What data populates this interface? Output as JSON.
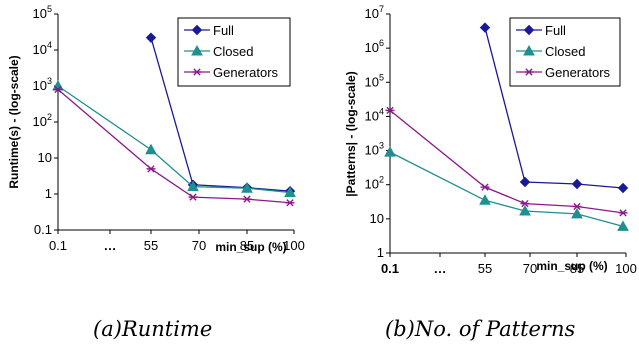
{
  "chart_data": [
    {
      "type": "line",
      "title": "",
      "ylabel": "Runtime(s) - (log-scale)",
      "xlabel": "min_sup (%)",
      "yscale": "log",
      "ylim": [
        0.1,
        100000
      ],
      "ytick_labels": [
        "0.1",
        "1",
        "10",
        "10^2",
        "10^3",
        "10^4",
        "10^5"
      ],
      "xtick_labels": [
        "0.1",
        "…",
        "55",
        "70",
        "85",
        "100"
      ],
      "x_break_marker": "…",
      "caption": "(a)Runtime",
      "legend": "top-right",
      "grid": false,
      "series": [
        {
          "name": "Full",
          "color": "#1a1a99",
          "marker": "diamond",
          "points": [
            {
              "x": "55",
              "y": 22000
            },
            {
              "x": "~67",
              "y": 1.8
            },
            {
              "x": "85",
              "y": 1.5
            },
            {
              "x": "100",
              "y": 1.2
            }
          ]
        },
        {
          "name": "Closed",
          "color": "#1f8f8f",
          "marker": "triangle",
          "points": [
            {
              "x": "0.1",
              "y": 1000
            },
            {
              "x": "55",
              "y": 17
            },
            {
              "x": "~67",
              "y": 1.6
            },
            {
              "x": "85",
              "y": 1.45
            },
            {
              "x": "100",
              "y": 1.1
            }
          ]
        },
        {
          "name": "Generators",
          "color": "#8a1a8a",
          "marker": "asterisk",
          "points": [
            {
              "x": "0.1",
              "y": 800
            },
            {
              "x": "55",
              "y": 5
            },
            {
              "x": "~67",
              "y": 0.82
            },
            {
              "x": "85",
              "y": 0.72
            },
            {
              "x": "100",
              "y": 0.57
            }
          ]
        }
      ]
    },
    {
      "type": "line",
      "title": "",
      "ylabel": "|Patterns| - (log-scale)",
      "xlabel": "min_sup (%)",
      "yscale": "log",
      "ylim": [
        1,
        10000000
      ],
      "ytick_labels": [
        "1",
        "10",
        "10^2",
        "10^3",
        "10^4",
        "10^5",
        "10^6",
        "10^7"
      ],
      "xtick_labels": [
        "0.1",
        "…",
        "55",
        "70",
        "85",
        "100"
      ],
      "x_break_marker": "…",
      "caption": "(b)No. of Patterns",
      "legend": "top-right",
      "grid": false,
      "series": [
        {
          "name": "Full",
          "color": "#1a1a99",
          "marker": "diamond",
          "points": [
            {
              "x": "55",
              "y": 4000000
            },
            {
              "x": "~67",
              "y": 120
            },
            {
              "x": "85",
              "y": 105
            },
            {
              "x": "100",
              "y": 80
            }
          ]
        },
        {
          "name": "Closed",
          "color": "#1f8f8f",
          "marker": "triangle",
          "points": [
            {
              "x": "0.1",
              "y": 900
            },
            {
              "x": "55",
              "y": 35
            },
            {
              "x": "~67",
              "y": 17
            },
            {
              "x": "85",
              "y": 14
            },
            {
              "x": "100",
              "y": 6
            }
          ]
        },
        {
          "name": "Generators",
          "color": "#8a1a8a",
          "marker": "asterisk",
          "points": [
            {
              "x": "0.1",
              "y": 15000
            },
            {
              "x": "55",
              "y": 85
            },
            {
              "x": "~67",
              "y": 28
            },
            {
              "x": "85",
              "y": 23
            },
            {
              "x": "100",
              "y": 15
            }
          ]
        }
      ]
    }
  ]
}
